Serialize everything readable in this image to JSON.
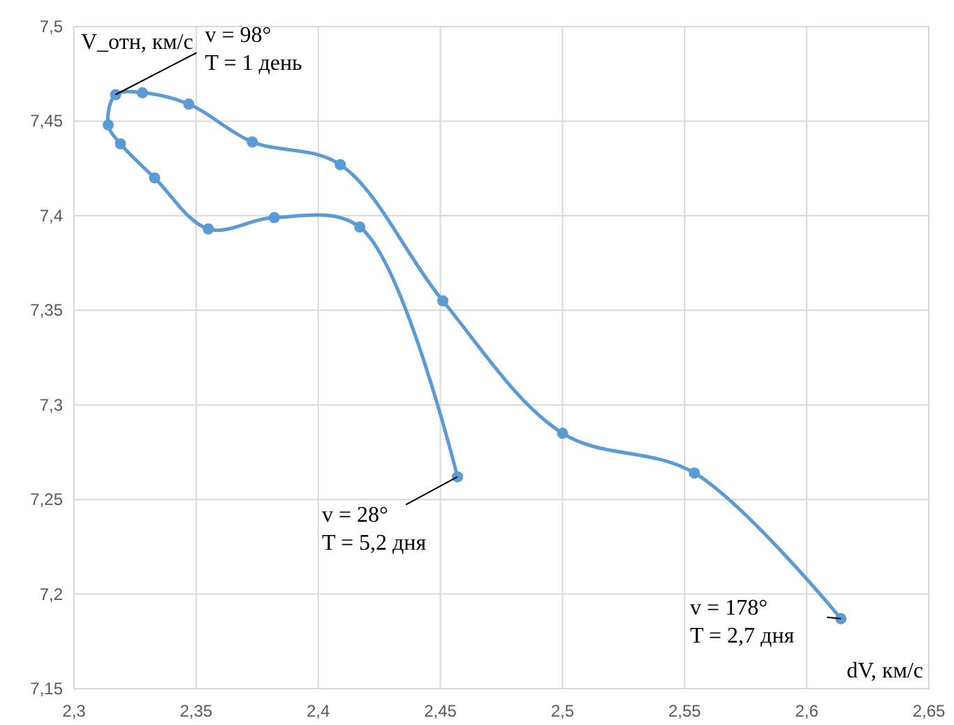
{
  "chart_data": {
    "type": "line",
    "xlabel": "dV, км/с",
    "ylabel": "V_отн, км/с",
    "x": [
      2.614,
      2.554,
      2.5,
      2.451,
      2.409,
      2.373,
      2.347,
      2.328,
      2.317,
      2.314,
      2.319,
      2.333,
      2.355,
      2.382,
      2.417,
      2.457
    ],
    "series": [
      {
        "color": "#5b9bd5",
        "values": [
          7.187,
          7.264,
          7.285,
          7.355,
          7.427,
          7.439,
          7.459,
          7.465,
          7.464,
          7.448,
          7.438,
          7.42,
          7.393,
          7.399,
          7.394,
          7.262
        ]
      }
    ],
    "xlim": [
      2.3,
      2.65
    ],
    "xticks": [
      {
        "value": 2.3,
        "label": "2,3"
      },
      {
        "value": 2.35,
        "label": "2,35"
      },
      {
        "value": 2.4,
        "label": "2,4"
      },
      {
        "value": 2.45,
        "label": "2,45"
      },
      {
        "value": 2.5,
        "label": "2,5"
      },
      {
        "value": 2.55,
        "label": "2,55"
      },
      {
        "value": 2.6,
        "label": "2,6"
      },
      {
        "value": 2.65,
        "label": "2,65"
      }
    ],
    "ylim": [
      7.15,
      7.5
    ],
    "yticks": [
      {
        "value": 7.15,
        "label": "7,15"
      },
      {
        "value": 7.2,
        "label": "7,2"
      },
      {
        "value": 7.25,
        "label": "7,25"
      },
      {
        "value": 7.3,
        "label": "7,3"
      },
      {
        "value": 7.35,
        "label": "7,35"
      },
      {
        "value": 7.4,
        "label": "7,4"
      },
      {
        "value": 7.45,
        "label": "7,45"
      },
      {
        "value": 7.5,
        "label": "7,5"
      }
    ],
    "grid": true,
    "marker": "circle",
    "line_style": "solid",
    "annotations": [
      {
        "text": "v = 98°\nT = 1 день",
        "x": 2.317,
        "y": 7.464
      },
      {
        "text": "v = 28°\nT = 5,2 дня",
        "x": 2.457,
        "y": 7.262
      },
      {
        "text": "v = 178°\nT = 2,7 дня",
        "x": 2.614,
        "y": 7.187
      }
    ]
  }
}
